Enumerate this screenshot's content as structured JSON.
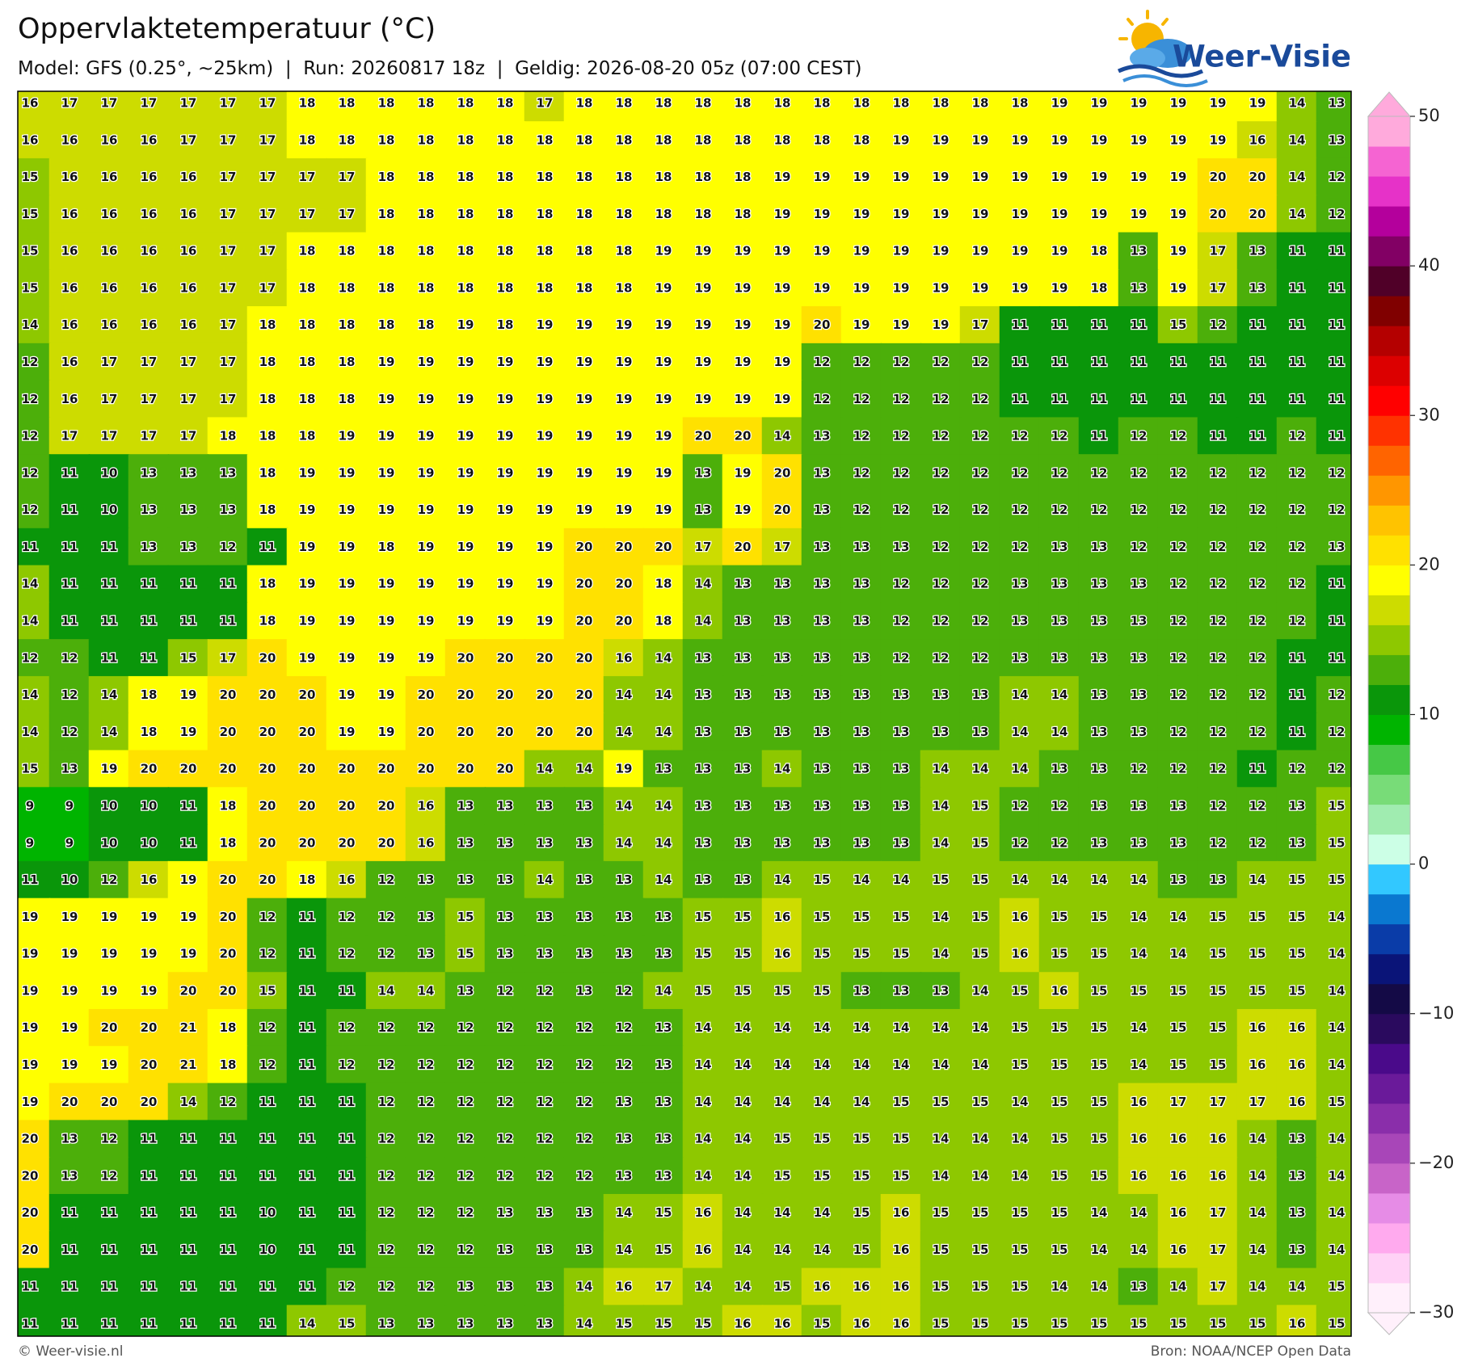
{
  "header": {
    "title": "Oppervlaktetemperatuur (°C)",
    "subtitle": "Model: GFS (0.25°, ~25km)  |  Run: 20260817 18z  |  Geldig: 2026-08-20 05z (07:00 CEST)"
  },
  "logo": {
    "text": "Weer-Visie"
  },
  "map": {
    "values": [
      [
        16,
        17,
        17,
        17,
        17,
        17,
        17,
        18,
        18,
        18,
        18,
        18,
        18,
        17,
        18,
        18,
        18,
        18,
        18,
        18,
        18,
        18,
        18,
        18,
        18,
        18,
        19,
        19,
        19,
        19,
        19,
        19,
        14,
        13
      ],
      [
        16,
        16,
        16,
        16,
        17,
        17,
        17,
        18,
        18,
        18,
        18,
        18,
        18,
        18,
        18,
        18,
        18,
        18,
        18,
        18,
        18,
        18,
        19,
        19,
        19,
        19,
        19,
        19,
        19,
        19,
        19,
        16,
        14,
        13
      ],
      [
        15,
        16,
        16,
        16,
        16,
        17,
        17,
        17,
        17,
        18,
        18,
        18,
        18,
        18,
        18,
        18,
        18,
        18,
        18,
        19,
        19,
        19,
        19,
        19,
        19,
        19,
        19,
        19,
        19,
        19,
        20,
        20,
        14,
        12
      ],
      [
        15,
        16,
        16,
        16,
        16,
        17,
        17,
        17,
        17,
        18,
        18,
        18,
        18,
        18,
        18,
        18,
        18,
        18,
        18,
        19,
        19,
        19,
        19,
        19,
        19,
        19,
        19,
        19,
        19,
        19,
        20,
        20,
        14,
        12
      ],
      [
        15,
        16,
        16,
        16,
        16,
        17,
        17,
        18,
        18,
        18,
        18,
        18,
        18,
        18,
        18,
        18,
        19,
        19,
        19,
        19,
        19,
        19,
        19,
        19,
        19,
        19,
        19,
        18,
        13,
        19,
        17,
        13,
        11,
        11
      ],
      [
        15,
        16,
        16,
        16,
        16,
        17,
        17,
        18,
        18,
        18,
        18,
        18,
        18,
        18,
        18,
        18,
        19,
        19,
        19,
        19,
        19,
        19,
        19,
        19,
        19,
        19,
        19,
        18,
        13,
        19,
        17,
        13,
        11,
        11
      ],
      [
        14,
        16,
        16,
        16,
        16,
        17,
        18,
        18,
        18,
        18,
        18,
        19,
        18,
        19,
        19,
        19,
        19,
        19,
        19,
        19,
        20,
        19,
        19,
        19,
        17,
        11,
        11,
        11,
        11,
        15,
        12,
        11,
        11,
        11
      ],
      [
        12,
        16,
        17,
        17,
        17,
        17,
        18,
        18,
        18,
        19,
        19,
        19,
        19,
        19,
        19,
        19,
        19,
        19,
        19,
        19,
        12,
        12,
        12,
        12,
        12,
        11,
        11,
        11,
        11,
        11,
        11,
        11,
        11,
        11
      ],
      [
        12,
        16,
        17,
        17,
        17,
        17,
        18,
        18,
        18,
        19,
        19,
        19,
        19,
        19,
        19,
        19,
        19,
        19,
        19,
        19,
        12,
        12,
        12,
        12,
        12,
        11,
        11,
        11,
        11,
        11,
        11,
        11,
        11,
        11
      ],
      [
        12,
        17,
        17,
        17,
        17,
        18,
        18,
        18,
        19,
        19,
        19,
        19,
        19,
        19,
        19,
        19,
        19,
        20,
        20,
        14,
        13,
        12,
        12,
        12,
        12,
        12,
        12,
        11,
        12,
        12,
        11,
        11,
        12,
        11
      ],
      [
        12,
        11,
        10,
        13,
        13,
        13,
        18,
        19,
        19,
        19,
        19,
        19,
        19,
        19,
        19,
        19,
        19,
        13,
        19,
        20,
        13,
        12,
        12,
        12,
        12,
        12,
        12,
        12,
        12,
        12,
        12,
        12,
        12,
        12
      ],
      [
        12,
        11,
        10,
        13,
        13,
        13,
        18,
        19,
        19,
        19,
        19,
        19,
        19,
        19,
        19,
        19,
        19,
        13,
        19,
        20,
        13,
        12,
        12,
        12,
        12,
        12,
        12,
        12,
        12,
        12,
        12,
        12,
        12,
        12
      ],
      [
        11,
        11,
        11,
        13,
        13,
        12,
        11,
        19,
        19,
        18,
        19,
        19,
        19,
        19,
        20,
        20,
        20,
        17,
        20,
        17,
        13,
        13,
        13,
        12,
        12,
        12,
        13,
        13,
        12,
        12,
        12,
        12,
        12,
        13
      ],
      [
        14,
        11,
        11,
        11,
        11,
        11,
        18,
        19,
        19,
        19,
        19,
        19,
        19,
        19,
        20,
        20,
        18,
        14,
        13,
        13,
        13,
        13,
        12,
        12,
        12,
        13,
        13,
        13,
        13,
        12,
        12,
        12,
        12,
        11
      ],
      [
        14,
        11,
        11,
        11,
        11,
        11,
        18,
        19,
        19,
        19,
        19,
        19,
        19,
        19,
        20,
        20,
        18,
        14,
        13,
        13,
        13,
        13,
        12,
        12,
        12,
        13,
        13,
        13,
        13,
        12,
        12,
        12,
        12,
        11
      ],
      [
        12,
        12,
        11,
        11,
        15,
        17,
        20,
        19,
        19,
        19,
        19,
        20,
        20,
        20,
        20,
        16,
        14,
        13,
        13,
        13,
        13,
        13,
        12,
        12,
        12,
        13,
        13,
        13,
        13,
        12,
        12,
        12,
        11,
        11
      ],
      [
        14,
        12,
        14,
        18,
        19,
        20,
        20,
        20,
        19,
        19,
        20,
        20,
        20,
        20,
        20,
        14,
        14,
        13,
        13,
        13,
        13,
        13,
        13,
        13,
        13,
        14,
        14,
        13,
        13,
        12,
        12,
        12,
        11,
        12
      ],
      [
        14,
        12,
        14,
        18,
        19,
        20,
        20,
        20,
        19,
        19,
        20,
        20,
        20,
        20,
        20,
        14,
        14,
        13,
        13,
        13,
        13,
        13,
        13,
        13,
        13,
        14,
        14,
        13,
        13,
        12,
        12,
        12,
        11,
        12
      ],
      [
        15,
        13,
        19,
        20,
        20,
        20,
        20,
        20,
        20,
        20,
        20,
        20,
        20,
        14,
        14,
        19,
        13,
        13,
        13,
        14,
        13,
        13,
        13,
        14,
        14,
        14,
        13,
        13,
        12,
        12,
        12,
        11,
        12,
        12
      ],
      [
        9,
        9,
        10,
        10,
        11,
        18,
        20,
        20,
        20,
        20,
        16,
        13,
        13,
        13,
        13,
        14,
        14,
        13,
        13,
        13,
        13,
        13,
        13,
        14,
        15,
        12,
        12,
        13,
        13,
        13,
        12,
        12,
        13,
        15
      ],
      [
        9,
        9,
        10,
        10,
        11,
        18,
        20,
        20,
        20,
        20,
        16,
        13,
        13,
        13,
        13,
        14,
        14,
        13,
        13,
        13,
        13,
        13,
        13,
        14,
        15,
        12,
        12,
        13,
        13,
        13,
        12,
        12,
        13,
        15
      ],
      [
        11,
        10,
        12,
        16,
        19,
        20,
        20,
        18,
        16,
        12,
        13,
        13,
        13,
        14,
        13,
        13,
        14,
        13,
        13,
        14,
        15,
        14,
        14,
        15,
        15,
        14,
        14,
        14,
        14,
        13,
        13,
        14,
        15,
        15
      ],
      [
        19,
        19,
        19,
        19,
        19,
        20,
        12,
        11,
        12,
        12,
        13,
        15,
        13,
        13,
        13,
        13,
        13,
        15,
        15,
        16,
        15,
        15,
        15,
        14,
        15,
        16,
        15,
        15,
        14,
        14,
        15,
        15,
        15,
        14
      ],
      [
        19,
        19,
        19,
        19,
        19,
        20,
        12,
        11,
        12,
        12,
        13,
        15,
        13,
        13,
        13,
        13,
        13,
        15,
        15,
        16,
        15,
        15,
        15,
        14,
        15,
        16,
        15,
        15,
        14,
        14,
        15,
        15,
        15,
        14
      ],
      [
        19,
        19,
        19,
        19,
        20,
        20,
        15,
        11,
        11,
        14,
        14,
        13,
        12,
        12,
        13,
        12,
        14,
        15,
        15,
        15,
        15,
        13,
        13,
        13,
        14,
        15,
        16,
        15,
        15,
        15,
        15,
        15,
        15,
        14
      ],
      [
        19,
        19,
        20,
        20,
        21,
        18,
        12,
        11,
        12,
        12,
        12,
        12,
        12,
        12,
        12,
        12,
        13,
        14,
        14,
        14,
        14,
        14,
        14,
        14,
        14,
        15,
        15,
        15,
        14,
        15,
        15,
        16,
        16,
        14
      ],
      [
        19,
        19,
        19,
        20,
        21,
        18,
        12,
        11,
        12,
        12,
        12,
        12,
        12,
        12,
        12,
        12,
        13,
        14,
        14,
        14,
        14,
        14,
        14,
        14,
        14,
        15,
        15,
        15,
        14,
        15,
        15,
        16,
        16,
        14
      ],
      [
        19,
        20,
        20,
        20,
        14,
        12,
        11,
        11,
        11,
        12,
        12,
        12,
        12,
        12,
        12,
        13,
        13,
        14,
        14,
        14,
        14,
        14,
        15,
        15,
        15,
        14,
        15,
        15,
        16,
        17,
        17,
        17,
        16,
        15
      ],
      [
        20,
        13,
        12,
        11,
        11,
        11,
        11,
        11,
        11,
        12,
        12,
        12,
        12,
        12,
        12,
        13,
        13,
        14,
        14,
        15,
        15,
        15,
        15,
        14,
        14,
        14,
        15,
        15,
        16,
        16,
        16,
        14,
        13,
        14
      ],
      [
        20,
        13,
        12,
        11,
        11,
        11,
        11,
        11,
        11,
        12,
        12,
        12,
        12,
        12,
        12,
        13,
        13,
        14,
        14,
        15,
        15,
        15,
        15,
        14,
        14,
        14,
        15,
        15,
        16,
        16,
        16,
        14,
        13,
        14
      ],
      [
        20,
        11,
        11,
        11,
        11,
        11,
        10,
        11,
        11,
        12,
        12,
        12,
        13,
        13,
        13,
        14,
        15,
        16,
        14,
        14,
        14,
        15,
        16,
        15,
        15,
        15,
        15,
        14,
        14,
        16,
        17,
        14,
        13,
        14
      ],
      [
        20,
        11,
        11,
        11,
        11,
        11,
        10,
        11,
        11,
        12,
        12,
        12,
        13,
        13,
        13,
        14,
        15,
        16,
        14,
        14,
        14,
        15,
        16,
        15,
        15,
        15,
        15,
        14,
        14,
        16,
        17,
        14,
        13,
        14
      ],
      [
        11,
        11,
        11,
        11,
        11,
        11,
        11,
        11,
        12,
        12,
        12,
        13,
        13,
        13,
        14,
        16,
        17,
        14,
        14,
        15,
        16,
        16,
        16,
        15,
        15,
        15,
        14,
        14,
        13,
        14,
        17,
        14,
        14,
        15
      ],
      [
        11,
        11,
        11,
        11,
        11,
        11,
        11,
        14,
        15,
        13,
        13,
        13,
        13,
        13,
        14,
        15,
        15,
        15,
        16,
        16,
        15,
        16,
        16,
        15,
        15,
        15,
        15,
        15,
        15,
        15,
        15,
        15,
        16,
        15
      ]
    ]
  },
  "colorbar": {
    "range": [
      -30,
      50
    ],
    "ticks": [
      {
        "value": -30,
        "label": "−30"
      },
      {
        "value": -20,
        "label": "−20"
      },
      {
        "value": -10,
        "label": "−10"
      },
      0,
      10,
      20,
      30,
      40,
      50
    ],
    "colors": [
      "#fff0fb",
      "#ffd2f6",
      "#ffaaee",
      "#e68ce6",
      "#c864c8",
      "#a846b8",
      "#8a2eaa",
      "#6a1a9a",
      "#4a0a8a",
      "#2a0a5e",
      "#140a46",
      "#0a1478",
      "#0a3ca8",
      "#0a78d0",
      "#32c8ff",
      "#ccffe6",
      "#a0ecb0",
      "#78dc78",
      "#46c846",
      "#00b400",
      "#0a960a",
      "#4caf0a",
      "#8ec800",
      "#cddc00",
      "#ffff00",
      "#ffe100",
      "#ffc300",
      "#ff9600",
      "#ff6400",
      "#ff3200",
      "#ff0000",
      "#dc0000",
      "#b40000",
      "#800000",
      "#500028",
      "#820064",
      "#b4009c",
      "#e632c8",
      "#f564d2",
      "#ffaadc"
    ]
  },
  "footer": {
    "left": "© Weer-visie.nl",
    "right": "Bron: NOAA/NCEP Open Data"
  }
}
